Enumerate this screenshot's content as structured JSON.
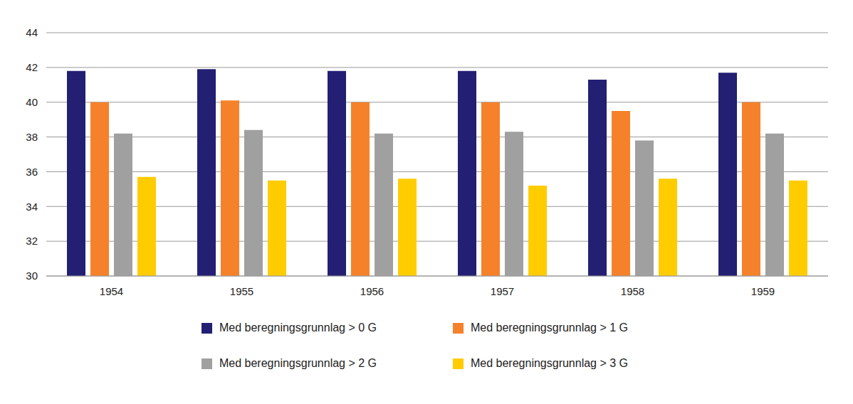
{
  "chart_data": {
    "type": "bar",
    "categories": [
      "1954",
      "1955",
      "1956",
      "1957",
      "1958",
      "1959"
    ],
    "series": [
      {
        "name": "Med beregningsgrunnlag > 0 G",
        "color": "#231f72",
        "values": [
          41.8,
          41.9,
          41.8,
          41.8,
          41.3,
          41.7
        ]
      },
      {
        "name": "Med beregningsgrunnlag > 1 G",
        "color": "#f5822a",
        "values": [
          40.0,
          40.1,
          40.0,
          40.0,
          39.5,
          40.0
        ]
      },
      {
        "name": "Med beregningsgrunnlag > 2 G",
        "color": "#a0a0a0",
        "values": [
          38.2,
          38.4,
          38.2,
          38.3,
          37.8,
          38.2
        ]
      },
      {
        "name": "Med beregningsgrunnlag > 3 G",
        "color": "#ffcc00",
        "values": [
          35.7,
          35.5,
          35.6,
          35.2,
          35.6,
          35.5
        ]
      }
    ],
    "ylim": [
      30,
      44
    ],
    "yticks": [
      30,
      32,
      34,
      36,
      38,
      40,
      42,
      44
    ],
    "grid": true,
    "legend": "bottom"
  }
}
